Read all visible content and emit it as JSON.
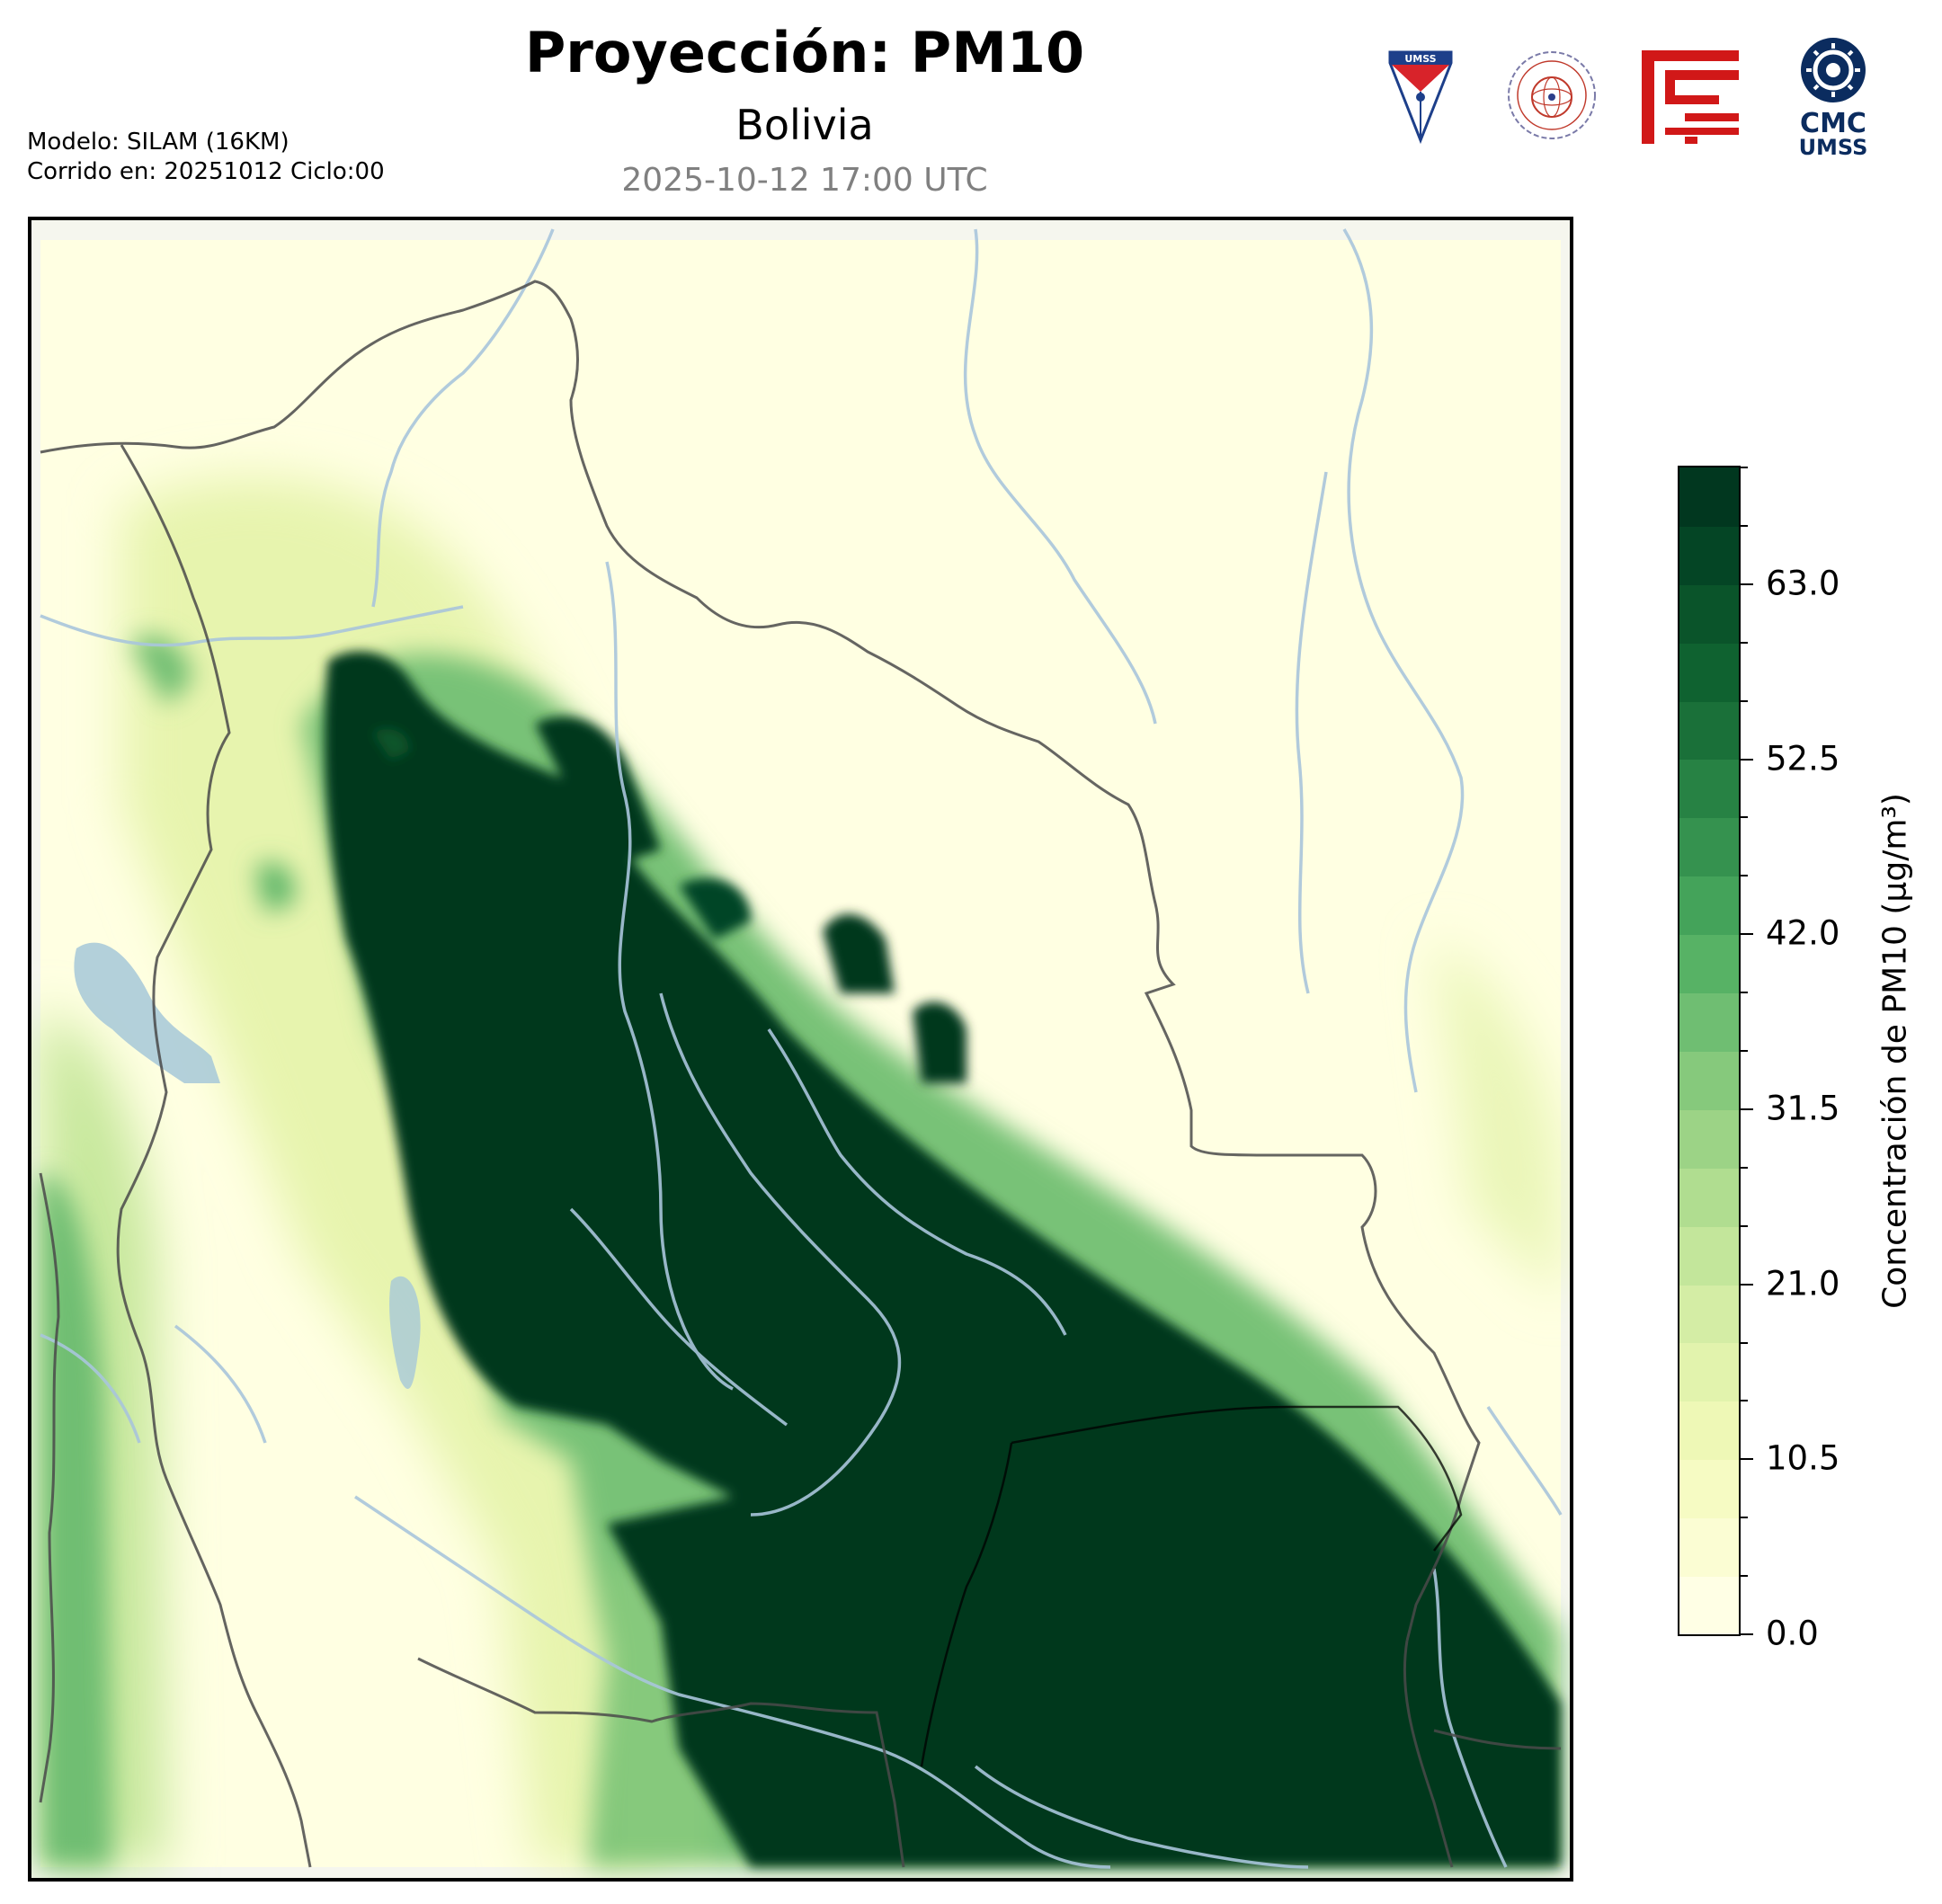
{
  "header": {
    "title": "Proyección: PM10",
    "subtitle": "Bolivia",
    "timestamp": "2025-10-12 17:00 UTC",
    "model_line": "Modelo: SILAM (16KM)",
    "run_line": "Corrido en: 20251012 Ciclo:00"
  },
  "logos": {
    "umss_text": "UMSS",
    "cmc_line1": "CMC",
    "cmc_line2": "UMSS"
  },
  "colorbar": {
    "label": "Concentración de PM10 (µg/m³)",
    "min": 0,
    "max": 70,
    "tick_labels": [
      "0.0",
      "10.5",
      "21.0",
      "31.5",
      "42.0",
      "52.5",
      "63.0"
    ],
    "tick_values": [
      0,
      10.5,
      21,
      31.5,
      42,
      52.5,
      63
    ],
    "levels": [
      0,
      3.5,
      7,
      10.5,
      14,
      17.5,
      21,
      24.5,
      28,
      31.5,
      35,
      38.5,
      42,
      45.5,
      49,
      52.5,
      56,
      59.5,
      63,
      66.5,
      70
    ],
    "colors": [
      "#ffffe5",
      "#fbfdd3",
      "#f6fbc3",
      "#eef8b6",
      "#e2f3ad",
      "#d4eda5",
      "#c3e69b",
      "#b0dd90",
      "#9cd386",
      "#86c97c",
      "#6fbe72",
      "#57b265",
      "#44a35a",
      "#35924f",
      "#278244",
      "#1a7039",
      "#0f6230",
      "#0a542a",
      "#044525",
      "#01371f"
    ]
  },
  "map": {
    "region": "Bolivia",
    "colormap": "YlGn",
    "border_color": "#000000",
    "river_color": "#a9c5db",
    "lake_color": "#a6c8d8"
  }
}
